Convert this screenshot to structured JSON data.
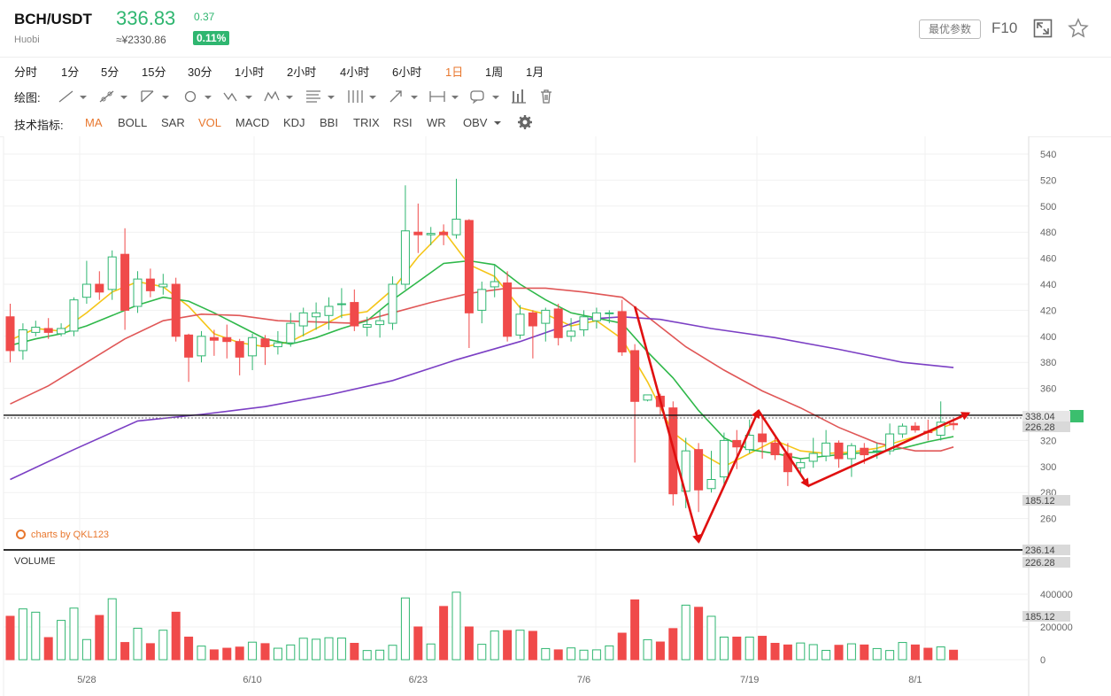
{
  "header": {
    "pair": "BCH/USDT",
    "exchange": "Huobi",
    "price": "336.83",
    "cny_price": "≈¥2330.86",
    "change": "0.37",
    "change_pct": "0.11%",
    "param_button": "最优参数",
    "f10": "F10"
  },
  "intervals": [
    "分时",
    "1分",
    "5分",
    "15分",
    "30分",
    "1小时",
    "2小时",
    "4小时",
    "6小时",
    "1日",
    "1周",
    "1月"
  ],
  "active_interval": "1日",
  "draw_label": "绘图:",
  "indicator_label": "技术指标:",
  "indicators": [
    "MA",
    "BOLL",
    "SAR",
    "VOL",
    "MACD",
    "KDJ",
    "BBI",
    "TRIX",
    "RSI",
    "WR",
    "OBV"
  ],
  "active_indicators": [
    "MA",
    "VOL"
  ],
  "watermark": "charts by QKL123",
  "volume_title": "VOLUME",
  "colors": {
    "up": "#2fb670",
    "down": "#f04a4a",
    "ma5": "#f5c518",
    "ma10": "#2fb84a",
    "ma20": "#e05757",
    "ma60": "#7b3fc4",
    "annot": "#e01010",
    "accent": "#e8772e"
  },
  "chart_data": {
    "type": "candlestick",
    "x_labels": [
      {
        "i": 6,
        "label": "5/28"
      },
      {
        "i": 19,
        "label": "6/10"
      },
      {
        "i": 32,
        "label": "6/23"
      },
      {
        "i": 45,
        "label": "7/6"
      },
      {
        "i": 58,
        "label": "7/19"
      },
      {
        "i": 71,
        "label": "8/1"
      }
    ],
    "price_ticks": [
      260,
      280,
      300,
      320,
      340,
      360,
      380,
      400,
      420,
      440,
      460,
      480,
      500,
      520,
      540
    ],
    "ylim": [
      234,
      546
    ],
    "volume_ticks": [
      {
        "v": 0,
        "label": "0"
      },
      {
        "v": 200000,
        "label": "200000"
      },
      {
        "v": 400000,
        "label": "400000"
      }
    ],
    "volume_max": 680000,
    "price_markers": [
      {
        "label": "338.04",
        "type": "last"
      },
      {
        "label": "226.28",
        "type": "gray"
      },
      {
        "label": "185.12",
        "type": "gray"
      },
      {
        "label": "236.14",
        "type": "gray"
      },
      {
        "label": "226.28",
        "type": "gray"
      },
      {
        "label": "185.12",
        "type": "gray"
      }
    ],
    "last_price_line": 338,
    "candles": [
      [
        415,
        389,
        380,
        425
      ],
      [
        389,
        405,
        382,
        410
      ],
      [
        403,
        407,
        400,
        412
      ],
      [
        406,
        403,
        398,
        414
      ],
      [
        402,
        406,
        400,
        410
      ],
      [
        404,
        428,
        400,
        430
      ],
      [
        430,
        440,
        425,
        458
      ],
      [
        440,
        434,
        428,
        450
      ],
      [
        436,
        461,
        428,
        466
      ],
      [
        463,
        420,
        405,
        483
      ],
      [
        423,
        444,
        418,
        450
      ],
      [
        444,
        435,
        430,
        452
      ],
      [
        438,
        440,
        432,
        448
      ],
      [
        440,
        400,
        396,
        445
      ],
      [
        401,
        384,
        365,
        402
      ],
      [
        385,
        400,
        380,
        404
      ],
      [
        399,
        397,
        385,
        405
      ],
      [
        399,
        396,
        383,
        409
      ],
      [
        396,
        384,
        370,
        398
      ],
      [
        385,
        399,
        374,
        402
      ],
      [
        398,
        392,
        378,
        401
      ],
      [
        392,
        395,
        386,
        404
      ],
      [
        395,
        410,
        392,
        418
      ],
      [
        408,
        418,
        400,
        422
      ],
      [
        415,
        418,
        405,
        426
      ],
      [
        416,
        423,
        405,
        430
      ],
      [
        425,
        425,
        414,
        437
      ],
      [
        426,
        408,
        404,
        436
      ],
      [
        407,
        409,
        400,
        415
      ],
      [
        409,
        412,
        399,
        420
      ],
      [
        410,
        440,
        405,
        446
      ],
      [
        440,
        481,
        436,
        516
      ],
      [
        480,
        478,
        464,
        502
      ],
      [
        478,
        479,
        470,
        484
      ],
      [
        480,
        478,
        470,
        486
      ],
      [
        478,
        490,
        475,
        521
      ],
      [
        489,
        418,
        391,
        490
      ],
      [
        420,
        436,
        410,
        442
      ],
      [
        438,
        442,
        430,
        455
      ],
      [
        441,
        400,
        396,
        450
      ],
      [
        401,
        417,
        398,
        424
      ],
      [
        418,
        408,
        383,
        420
      ],
      [
        410,
        420,
        396,
        422
      ],
      [
        421,
        399,
        393,
        425
      ],
      [
        400,
        404,
        396,
        414
      ],
      [
        405,
        415,
        400,
        420
      ],
      [
        412,
        418,
        406,
        422
      ],
      [
        418,
        418,
        410,
        420
      ],
      [
        419,
        388,
        385,
        428
      ],
      [
        389,
        350,
        303,
        394
      ],
      [
        351,
        355,
        350,
        352
      ],
      [
        354,
        346,
        340,
        356
      ],
      [
        345,
        279,
        270,
        350
      ],
      [
        281,
        312,
        268,
        322
      ],
      [
        313,
        282,
        265,
        318
      ],
      [
        283,
        290,
        280,
        312
      ],
      [
        292,
        320,
        284,
        326
      ],
      [
        320,
        315,
        298,
        328
      ],
      [
        313,
        324,
        310,
        336
      ],
      [
        325,
        319,
        306,
        340
      ],
      [
        318,
        309,
        305,
        322
      ],
      [
        310,
        296,
        285,
        318
      ],
      [
        299,
        303,
        294,
        306
      ],
      [
        304,
        310,
        299,
        322
      ],
      [
        308,
        318,
        304,
        328
      ],
      [
        318,
        306,
        299,
        320
      ],
      [
        306,
        316,
        292,
        318
      ],
      [
        314,
        309,
        302,
        318
      ],
      [
        312,
        312,
        306,
        318
      ],
      [
        312,
        325,
        309,
        333
      ],
      [
        325,
        331,
        322,
        333
      ],
      [
        331,
        328,
        326,
        334
      ],
      [
        327,
        326,
        320,
        336
      ],
      [
        324,
        334,
        320,
        350
      ],
      [
        333,
        332,
        328,
        336
      ]
    ],
    "volumes": [
      265000,
      310000,
      290000,
      135000,
      240000,
      315000,
      123000,
      270000,
      372000,
      105000,
      192000,
      98000,
      180000,
      290000,
      138000,
      83000,
      60000,
      70000,
      77000,
      107000,
      98000,
      70000,
      90000,
      131000,
      125000,
      134000,
      132000,
      100000,
      56000,
      58000,
      88000,
      377000,
      200000,
      96000,
      325000,
      412000,
      200000,
      94000,
      175000,
      178000,
      180000,
      173000,
      68000,
      60000,
      72000,
      58000,
      60000,
      84000,
      162000,
      365000,
      122000,
      108000,
      190000,
      333000,
      320000,
      265000,
      138000,
      138000,
      138000,
      143000,
      100000,
      90000,
      102000,
      92000,
      57000,
      88000,
      97000,
      90000,
      68000,
      56000,
      105000,
      90000,
      70000,
      78000,
      58000
    ],
    "ma_lines": [
      {
        "name": "MA5",
        "color": "#f5c518",
        "points": [
          [
            0,
            397
          ],
          [
            2,
            406
          ],
          [
            4,
            404
          ],
          [
            6,
            418
          ],
          [
            8,
            434
          ],
          [
            10,
            442
          ],
          [
            12,
            438
          ],
          [
            14,
            423
          ],
          [
            16,
            402
          ],
          [
            18,
            395
          ],
          [
            20,
            392
          ],
          [
            22,
            396
          ],
          [
            24,
            406
          ],
          [
            26,
            416
          ],
          [
            28,
            419
          ],
          [
            30,
            436
          ],
          [
            32,
            461
          ],
          [
            34,
            481
          ],
          [
            36,
            455
          ],
          [
            38,
            446
          ],
          [
            40,
            422
          ],
          [
            42,
            417
          ],
          [
            44,
            408
          ],
          [
            46,
            412
          ],
          [
            48,
            398
          ],
          [
            50,
            365
          ],
          [
            52,
            326
          ],
          [
            54,
            311
          ],
          [
            56,
            300
          ],
          [
            58,
            310
          ],
          [
            60,
            320
          ],
          [
            62,
            312
          ],
          [
            64,
            310
          ],
          [
            66,
            311
          ],
          [
            68,
            314
          ],
          [
            70,
            320
          ],
          [
            72,
            326
          ],
          [
            74,
            333
          ]
        ]
      },
      {
        "name": "MA10",
        "color": "#2fb84a",
        "points": [
          [
            0,
            393
          ],
          [
            2,
            398
          ],
          [
            4,
            402
          ],
          [
            6,
            408
          ],
          [
            8,
            416
          ],
          [
            10,
            424
          ],
          [
            12,
            430
          ],
          [
            14,
            427
          ],
          [
            16,
            418
          ],
          [
            18,
            408
          ],
          [
            20,
            398
          ],
          [
            22,
            394
          ],
          [
            24,
            399
          ],
          [
            26,
            406
          ],
          [
            28,
            412
          ],
          [
            30,
            428
          ],
          [
            32,
            442
          ],
          [
            34,
            456
          ],
          [
            36,
            458
          ],
          [
            38,
            455
          ],
          [
            40,
            440
          ],
          [
            42,
            428
          ],
          [
            44,
            418
          ],
          [
            46,
            414
          ],
          [
            48,
            410
          ],
          [
            50,
            388
          ],
          [
            52,
            368
          ],
          [
            54,
            343
          ],
          [
            56,
            322
          ],
          [
            58,
            313
          ],
          [
            60,
            310
          ],
          [
            62,
            306
          ],
          [
            64,
            308
          ],
          [
            66,
            310
          ],
          [
            68,
            311
          ],
          [
            70,
            314
          ],
          [
            72,
            319
          ],
          [
            74,
            323
          ]
        ]
      },
      {
        "name": "MA20",
        "color": "#e05757",
        "points": [
          [
            0,
            348
          ],
          [
            3,
            362
          ],
          [
            6,
            380
          ],
          [
            9,
            398
          ],
          [
            12,
            412
          ],
          [
            15,
            417
          ],
          [
            18,
            416
          ],
          [
            21,
            412
          ],
          [
            24,
            411
          ],
          [
            27,
            410
          ],
          [
            30,
            418
          ],
          [
            33,
            426
          ],
          [
            36,
            433
          ],
          [
            39,
            437
          ],
          [
            42,
            437
          ],
          [
            45,
            434
          ],
          [
            48,
            430
          ],
          [
            50,
            415
          ],
          [
            53,
            392
          ],
          [
            56,
            374
          ],
          [
            59,
            358
          ],
          [
            62,
            345
          ],
          [
            65,
            330
          ],
          [
            68,
            318
          ],
          [
            71,
            312
          ],
          [
            73,
            312
          ],
          [
            74,
            315
          ]
        ]
      },
      {
        "name": "MA60",
        "color": "#7b3fc4",
        "points": [
          [
            0,
            290
          ],
          [
            5,
            313
          ],
          [
            10,
            335
          ],
          [
            15,
            340
          ],
          [
            20,
            346
          ],
          [
            25,
            355
          ],
          [
            30,
            366
          ],
          [
            35,
            382
          ],
          [
            40,
            396
          ],
          [
            45,
            413
          ],
          [
            48,
            415
          ],
          [
            51,
            413
          ],
          [
            55,
            406
          ],
          [
            60,
            399
          ],
          [
            65,
            390
          ],
          [
            70,
            380
          ],
          [
            74,
            376
          ]
        ]
      }
    ],
    "annotation_arrows": [
      [
        [
          49,
          423
        ],
        [
          54,
          242
        ]
      ],
      [
        [
          54,
          242
        ],
        [
          58.7,
          343
        ]
      ],
      [
        [
          58.7,
          343
        ],
        [
          62.6,
          285
        ]
      ],
      [
        [
          62.6,
          285
        ],
        [
          75.2,
          341
        ]
      ]
    ]
  }
}
